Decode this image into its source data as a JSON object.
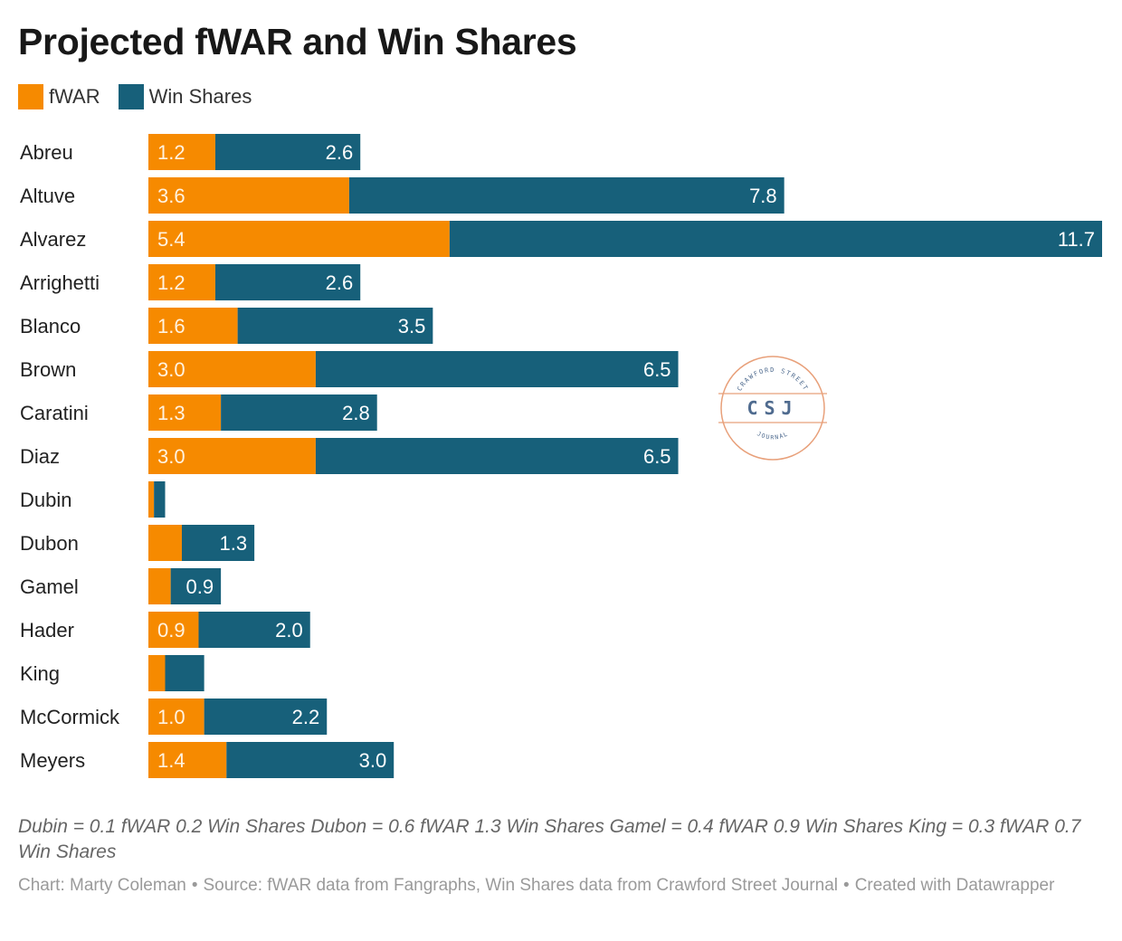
{
  "title": "Projected fWAR and Win Shares",
  "legend": [
    {
      "label": "fWAR",
      "color": "#f68a00"
    },
    {
      "label": "Win Shares",
      "color": "#17607a"
    }
  ],
  "chart_data": {
    "type": "bar",
    "orientation": "horizontal",
    "stacked": true,
    "categories": [
      "Abreu",
      "Altuve",
      "Alvarez",
      "Arrighetti",
      "Blanco",
      "Brown",
      "Caratini",
      "Diaz",
      "Dubin",
      "Dubon",
      "Gamel",
      "Hader",
      "King",
      "McCormick",
      "Meyers"
    ],
    "series": [
      {
        "name": "fWAR",
        "color": "#f68a00",
        "values": [
          1.2,
          3.6,
          5.4,
          1.2,
          1.6,
          3.0,
          1.3,
          3.0,
          0.1,
          0.6,
          0.4,
          0.9,
          0.3,
          1.0,
          1.4
        ]
      },
      {
        "name": "Win Shares",
        "color": "#17607a",
        "values": [
          2.6,
          7.8,
          11.7,
          2.6,
          3.5,
          6.5,
          2.8,
          6.5,
          0.2,
          1.3,
          0.9,
          2.0,
          0.7,
          2.2,
          3.0
        ]
      }
    ],
    "data_labels": {
      "fWAR": [
        "1.2",
        "3.6",
        "5.4",
        "1.2",
        "1.6",
        "3.0",
        "1.3",
        "3.0",
        "",
        "",
        "",
        "0.9",
        "",
        "1.0",
        "1.4"
      ],
      "Win Shares": [
        "2.6",
        "7.8",
        "11.7",
        "2.6",
        "3.5",
        "6.5",
        "2.8",
        "6.5",
        "",
        "1.3",
        "0.9",
        "2.0",
        "",
        "2.2",
        "3.0"
      ]
    },
    "grid": false,
    "legend_position": "top-left"
  },
  "notes": "Dubin = 0.1 fWAR 0.2 Win Shares Dubon = 0.6 fWAR 1.3 Win Shares Gamel = 0.4 fWAR 0.9 Win Shares King = 0.3 fWAR 0.7 Win Shares",
  "credit": {
    "chart": "Chart: Marty Coleman",
    "separator": "•",
    "source": "Source: fWAR data from Fangraphs, Win Shares data from Crawford Street Journal",
    "tool": "Created with Datawrapper"
  },
  "watermark": {
    "top_text": "CRAWFORD STREET",
    "center_text": "CSJ",
    "bottom_text": "JOURNAL",
    "color": "#e8a07a",
    "text_color": "#4f6b8f"
  }
}
